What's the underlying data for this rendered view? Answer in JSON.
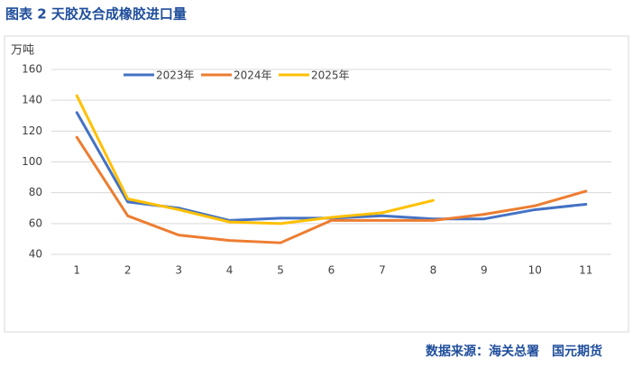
{
  "chart_data": {
    "type": "line",
    "title": "图表 2  天胶及合成橡胶进口量",
    "y_label": "万吨",
    "categories": [
      "1",
      "2",
      "3",
      "4",
      "5",
      "6",
      "7",
      "8",
      "9",
      "10",
      "11"
    ],
    "series": [
      {
        "name": "2023年",
        "color": "#4472c4",
        "values": [
          132,
          74,
          70,
          62,
          63.5,
          63.5,
          65,
          63,
          63,
          69,
          72.5
        ]
      },
      {
        "name": "2024年",
        "color": "#ed7d31",
        "values": [
          116,
          65,
          52.5,
          49,
          47.5,
          62,
          62,
          62,
          66,
          71.5,
          81
        ]
      },
      {
        "name": "2025年",
        "color": "#ffc000",
        "values": [
          143,
          76,
          69,
          61,
          60,
          64,
          67,
          75,
          null,
          null,
          null
        ]
      }
    ],
    "ylim": [
      40,
      160
    ],
    "yticks": [
      40,
      60,
      80,
      100,
      120,
      140,
      160
    ],
    "grid": true,
    "legend": "top",
    "source": "数据来源：海关总署　国元期货"
  }
}
